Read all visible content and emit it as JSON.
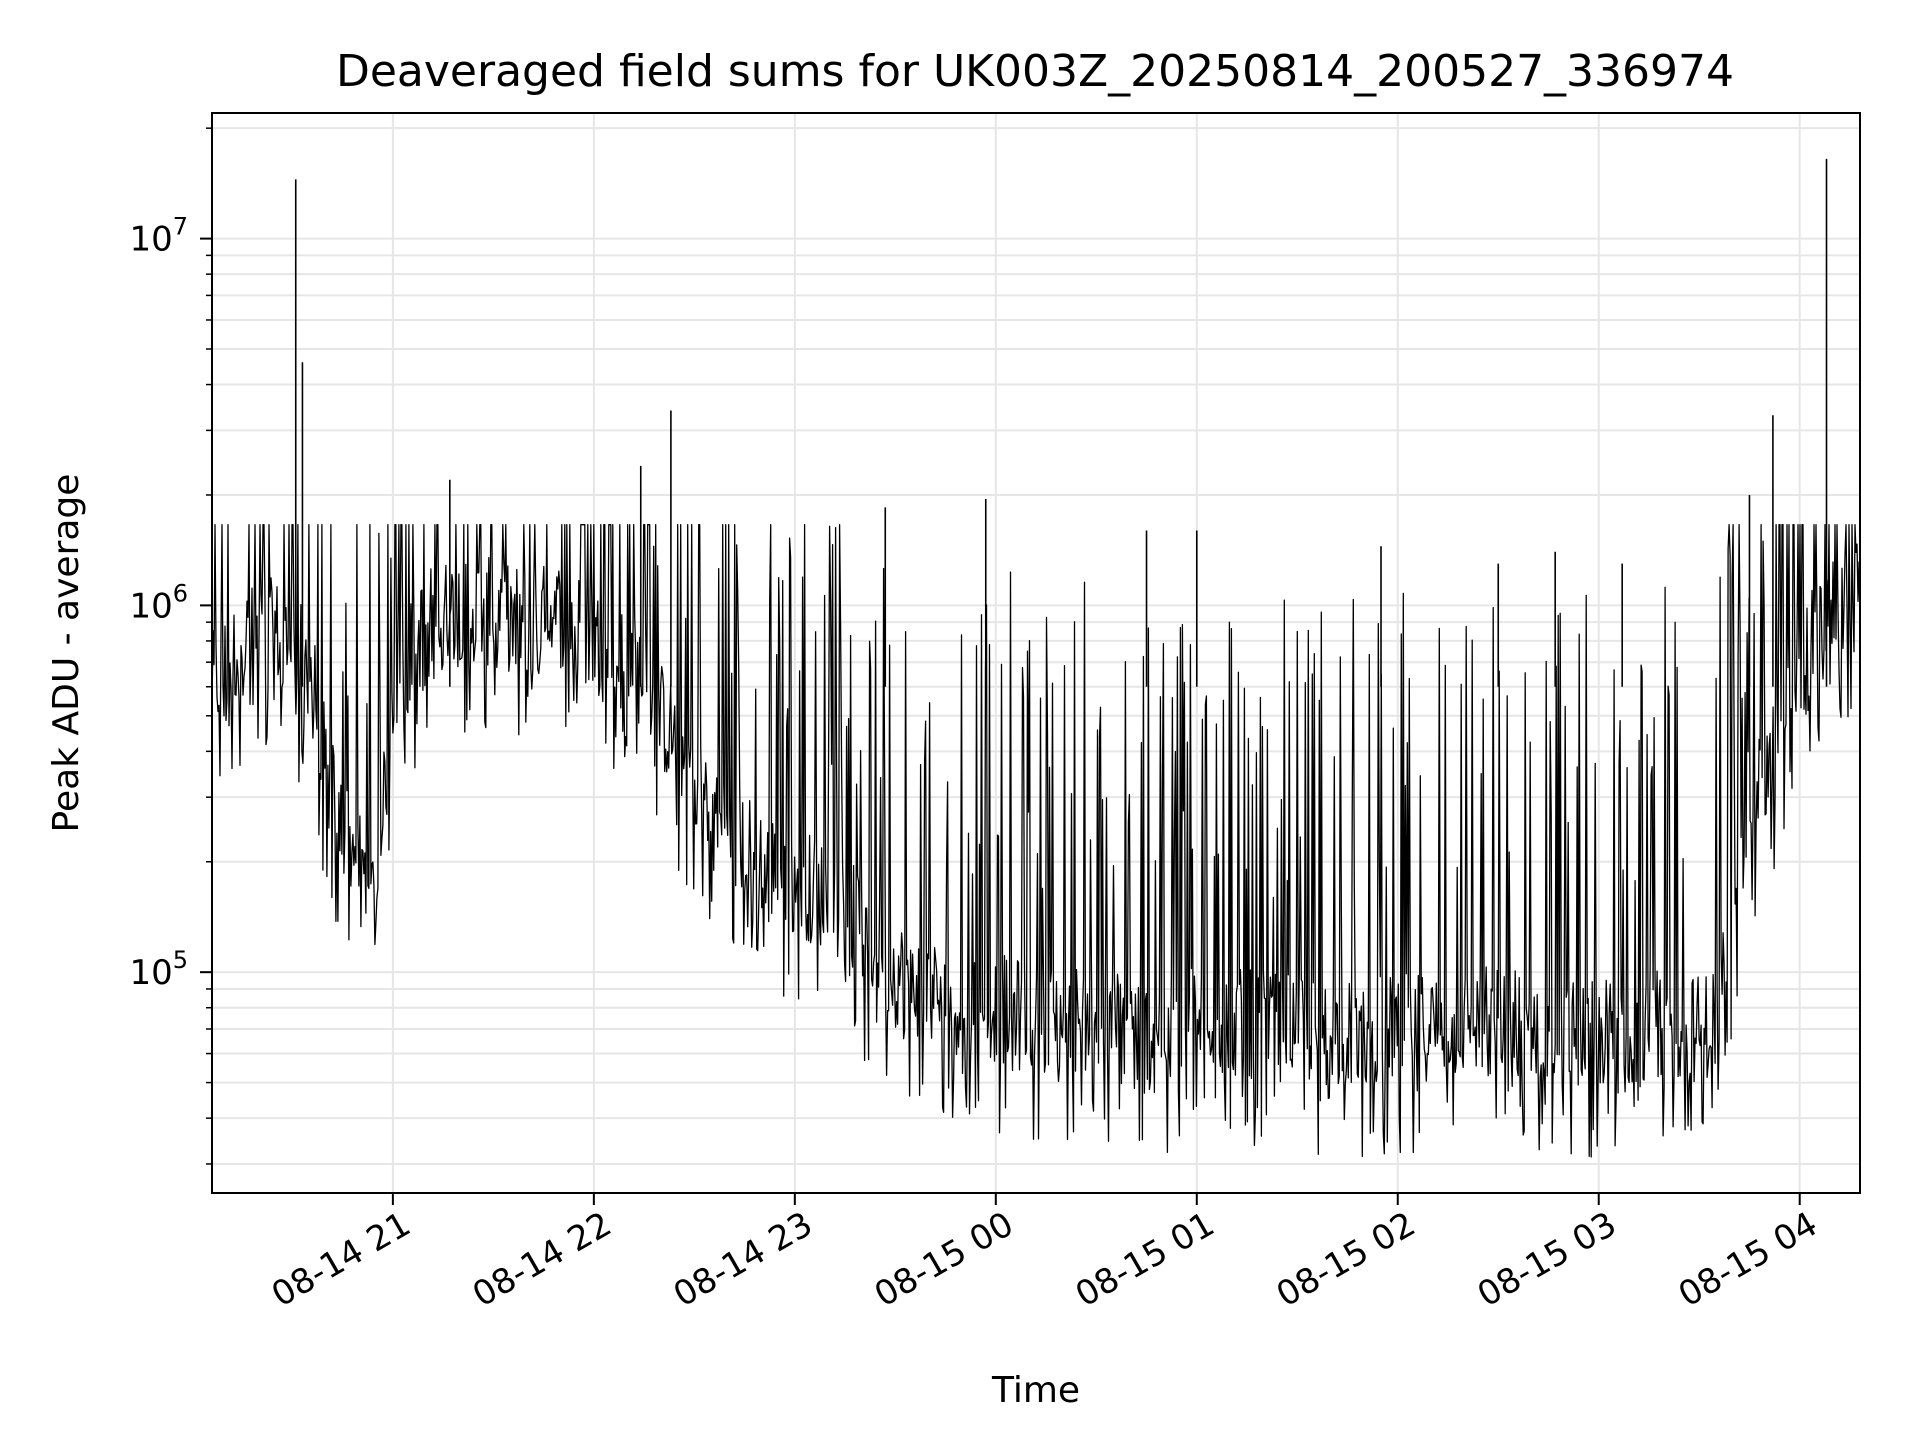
{
  "chart_data": {
    "type": "line",
    "title": "Deaveraged field sums for UK003Z_20250814_200527_336974",
    "xlabel": "Time",
    "ylabel": "Peak ADU - average",
    "yscale": "log",
    "ylim": [
      25000,
      22000000
    ],
    "xlim": [
      "2025-08-14 20:06",
      "2025-08-15 04:18"
    ],
    "grid": true,
    "line_color": "#000000",
    "grid_color": "#e6e6e6",
    "x_ticks": [
      "08-14 21",
      "08-14 22",
      "08-14 23",
      "08-15 00",
      "08-15 01",
      "08-15 02",
      "08-15 03",
      "08-15 04"
    ],
    "x_tick_times": [
      "2025-08-14 21:00",
      "2025-08-14 22:00",
      "2025-08-14 23:00",
      "2025-08-15 00:00",
      "2025-08-15 01:00",
      "2025-08-15 02:00",
      "2025-08-15 03:00",
      "2025-08-15 04:00"
    ],
    "y_ticks": [
      {
        "value": 100000,
        "base": "10",
        "exp": "5"
      },
      {
        "value": 1000000,
        "base": "10",
        "exp": "6"
      },
      {
        "value": 10000000,
        "base": "10",
        "exp": "7"
      }
    ],
    "series": [
      {
        "x": [
          "2025-08-14 20:06",
          "2025-08-14 20:15",
          "2025-08-14 20:25",
          "2025-08-14 20:30",
          "2025-08-14 20:35",
          "2025-08-14 20:38",
          "2025-08-14 20:40",
          "2025-08-14 20:45",
          "2025-08-14 20:50",
          "2025-08-14 20:55",
          "2025-08-14 21:00",
          "2025-08-14 21:10",
          "2025-08-14 21:20",
          "2025-08-14 21:30",
          "2025-08-14 21:40",
          "2025-08-14 21:50",
          "2025-08-14 22:00",
          "2025-08-14 22:10",
          "2025-08-14 22:15",
          "2025-08-14 22:20",
          "2025-08-14 22:30",
          "2025-08-14 22:40",
          "2025-08-14 22:50",
          "2025-08-14 23:00",
          "2025-08-14 23:15",
          "2025-08-14 23:30",
          "2025-08-14 23:45",
          "2025-08-15 00:00",
          "2025-08-15 00:15",
          "2025-08-15 00:30",
          "2025-08-15 00:45",
          "2025-08-15 01:00",
          "2025-08-15 01:15",
          "2025-08-15 01:30",
          "2025-08-15 01:45",
          "2025-08-15 02:00",
          "2025-08-15 02:15",
          "2025-08-15 02:30",
          "2025-08-15 02:45",
          "2025-08-15 03:00",
          "2025-08-15 03:15",
          "2025-08-15 03:30",
          "2025-08-15 03:35",
          "2025-08-15 03:40",
          "2025-08-15 03:45",
          "2025-08-15 03:50",
          "2025-08-15 04:00",
          "2025-08-15 04:10",
          "2025-08-15 04:18"
        ],
        "y": [
          600000,
          800000,
          850000,
          750000,
          700000,
          500000,
          350000,
          250000,
          200000,
          150000,
          600000,
          900000,
          1000000,
          950000,
          900000,
          950000,
          800000,
          700000,
          650000,
          500000,
          350000,
          250000,
          200000,
          180000,
          150000,
          100000,
          85000,
          80000,
          75000,
          75000,
          70000,
          75000,
          72000,
          70000,
          68000,
          70000,
          72000,
          75000,
          70000,
          68000,
          72000,
          70000,
          75000,
          150000,
          300000,
          350000,
          700000,
          1000000,
          1050000
        ],
        "spikes_x": [
          "2025-08-14 20:31",
          "2025-08-14 20:33",
          "2025-08-14 21:17",
          "2025-08-14 22:14",
          "2025-08-14 22:23",
          "2025-08-14 23:27",
          "2025-08-14 23:57",
          "2025-08-15 00:45",
          "2025-08-15 01:00",
          "2025-08-15 01:55",
          "2025-08-15 02:30",
          "2025-08-15 02:47",
          "2025-08-15 03:07",
          "2025-08-15 03:45",
          "2025-08-15 03:52",
          "2025-08-15 04:08"
        ],
        "spikes_y": [
          14500000,
          4600000,
          2200000,
          2400000,
          3400000,
          1850000,
          1950000,
          1600000,
          1600000,
          1450000,
          1300000,
          1400000,
          1300000,
          2000000,
          3300000,
          16500000
        ]
      }
    ]
  }
}
